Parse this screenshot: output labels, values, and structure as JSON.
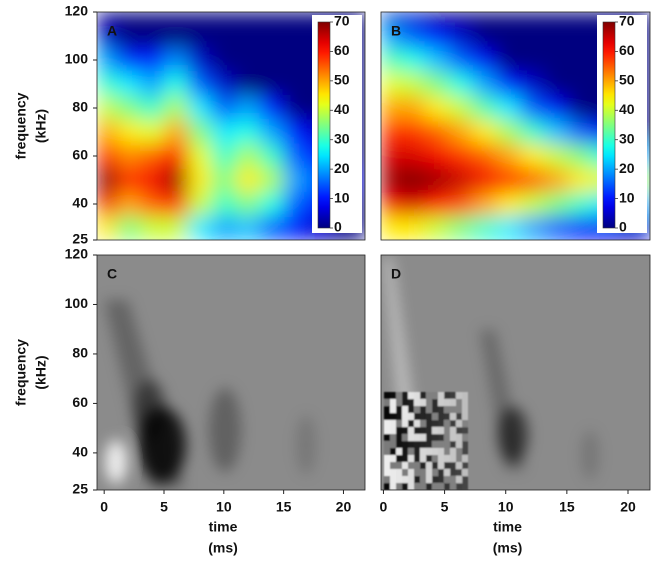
{
  "chart_data": [
    {
      "type": "heatmap",
      "panel_label": "A",
      "ylabel": [
        "frequency",
        "(kHz)"
      ],
      "colormap": "jet",
      "xlim": [
        -0.6,
        21.8
      ],
      "ylim": [
        25,
        120
      ],
      "yticks": [
        25,
        40,
        60,
        80,
        100,
        120
      ],
      "x": [
        0,
        2,
        4,
        6,
        8,
        10,
        12,
        14,
        16,
        18,
        20
      ],
      "y": [
        120,
        110,
        100,
        90,
        80,
        70,
        60,
        50,
        40,
        30
      ],
      "z": [
        [
          0,
          0,
          0,
          0,
          0,
          0,
          0,
          0,
          0,
          0,
          0
        ],
        [
          5,
          0,
          0,
          0,
          0,
          0,
          0,
          0,
          0,
          0,
          0
        ],
        [
          20,
          12,
          10,
          18,
          5,
          0,
          0,
          0,
          0,
          0,
          0
        ],
        [
          30,
          25,
          20,
          28,
          15,
          5,
          0,
          0,
          0,
          0,
          0
        ],
        [
          40,
          35,
          30,
          38,
          25,
          15,
          20,
          10,
          0,
          0,
          0
        ],
        [
          50,
          45,
          42,
          50,
          35,
          25,
          28,
          20,
          10,
          5,
          0
        ],
        [
          60,
          52,
          55,
          60,
          42,
          30,
          38,
          30,
          15,
          10,
          0
        ],
        [
          70,
          58,
          62,
          68,
          45,
          35,
          45,
          38,
          20,
          15,
          5
        ],
        [
          62,
          50,
          55,
          58,
          40,
          30,
          35,
          28,
          15,
          10,
          0
        ],
        [
          45,
          35,
          40,
          40,
          25,
          20,
          22,
          15,
          10,
          5,
          0
        ]
      ],
      "colorbar": {
        "clim": [
          0,
          70
        ],
        "ticks": [
          0,
          10,
          20,
          30,
          40,
          50,
          60,
          70
        ]
      }
    },
    {
      "type": "heatmap",
      "panel_label": "B",
      "colormap": "jet",
      "xlim": [
        -0.6,
        21.8
      ],
      "ylim": [
        25,
        120
      ],
      "x": [
        0,
        2,
        4,
        6,
        8,
        10,
        12,
        14,
        16,
        18,
        20
      ],
      "y": [
        120,
        110,
        100,
        90,
        80,
        70,
        60,
        50,
        40,
        30
      ],
      "z": [
        [
          5,
          5,
          0,
          0,
          0,
          0,
          0,
          0,
          0,
          0,
          0
        ],
        [
          20,
          15,
          10,
          5,
          0,
          0,
          0,
          0,
          0,
          0,
          0
        ],
        [
          32,
          28,
          22,
          15,
          8,
          0,
          0,
          0,
          0,
          0,
          0
        ],
        [
          42,
          40,
          35,
          28,
          20,
          10,
          5,
          0,
          0,
          0,
          0
        ],
        [
          50,
          50,
          45,
          40,
          32,
          25,
          15,
          8,
          0,
          0,
          0
        ],
        [
          58,
          58,
          55,
          50,
          45,
          38,
          30,
          22,
          15,
          8,
          0
        ],
        [
          64,
          64,
          62,
          58,
          55,
          50,
          45,
          40,
          35,
          28,
          20
        ],
        [
          68,
          70,
          68,
          65,
          62,
          58,
          55,
          50,
          45,
          42,
          38
        ],
        [
          62,
          64,
          60,
          56,
          50,
          45,
          40,
          35,
          30,
          25,
          20
        ],
        [
          45,
          45,
          40,
          35,
          30,
          25,
          20,
          15,
          10,
          8,
          5
        ]
      ],
      "colorbar": {
        "clim": [
          0,
          70
        ],
        "ticks": [
          0,
          10,
          20,
          30,
          40,
          50,
          60,
          70
        ]
      }
    },
    {
      "type": "image",
      "panel_label": "C",
      "ylabel": [
        "frequency",
        "(kHz)"
      ],
      "xlabel": [
        "time",
        "(ms)"
      ],
      "xlim": [
        -0.6,
        21.8
      ],
      "ylim": [
        25,
        120
      ],
      "yticks": [
        25,
        40,
        60,
        80,
        100,
        120
      ],
      "xticks": [
        0,
        5,
        10,
        15,
        20
      ]
    },
    {
      "type": "image",
      "panel_label": "D",
      "xlabel": [
        "time",
        "(ms)"
      ],
      "xlim": [
        -0.2,
        21.8
      ],
      "ylim": [
        25,
        120
      ],
      "xticks": [
        0,
        5,
        10,
        15,
        20
      ]
    }
  ]
}
